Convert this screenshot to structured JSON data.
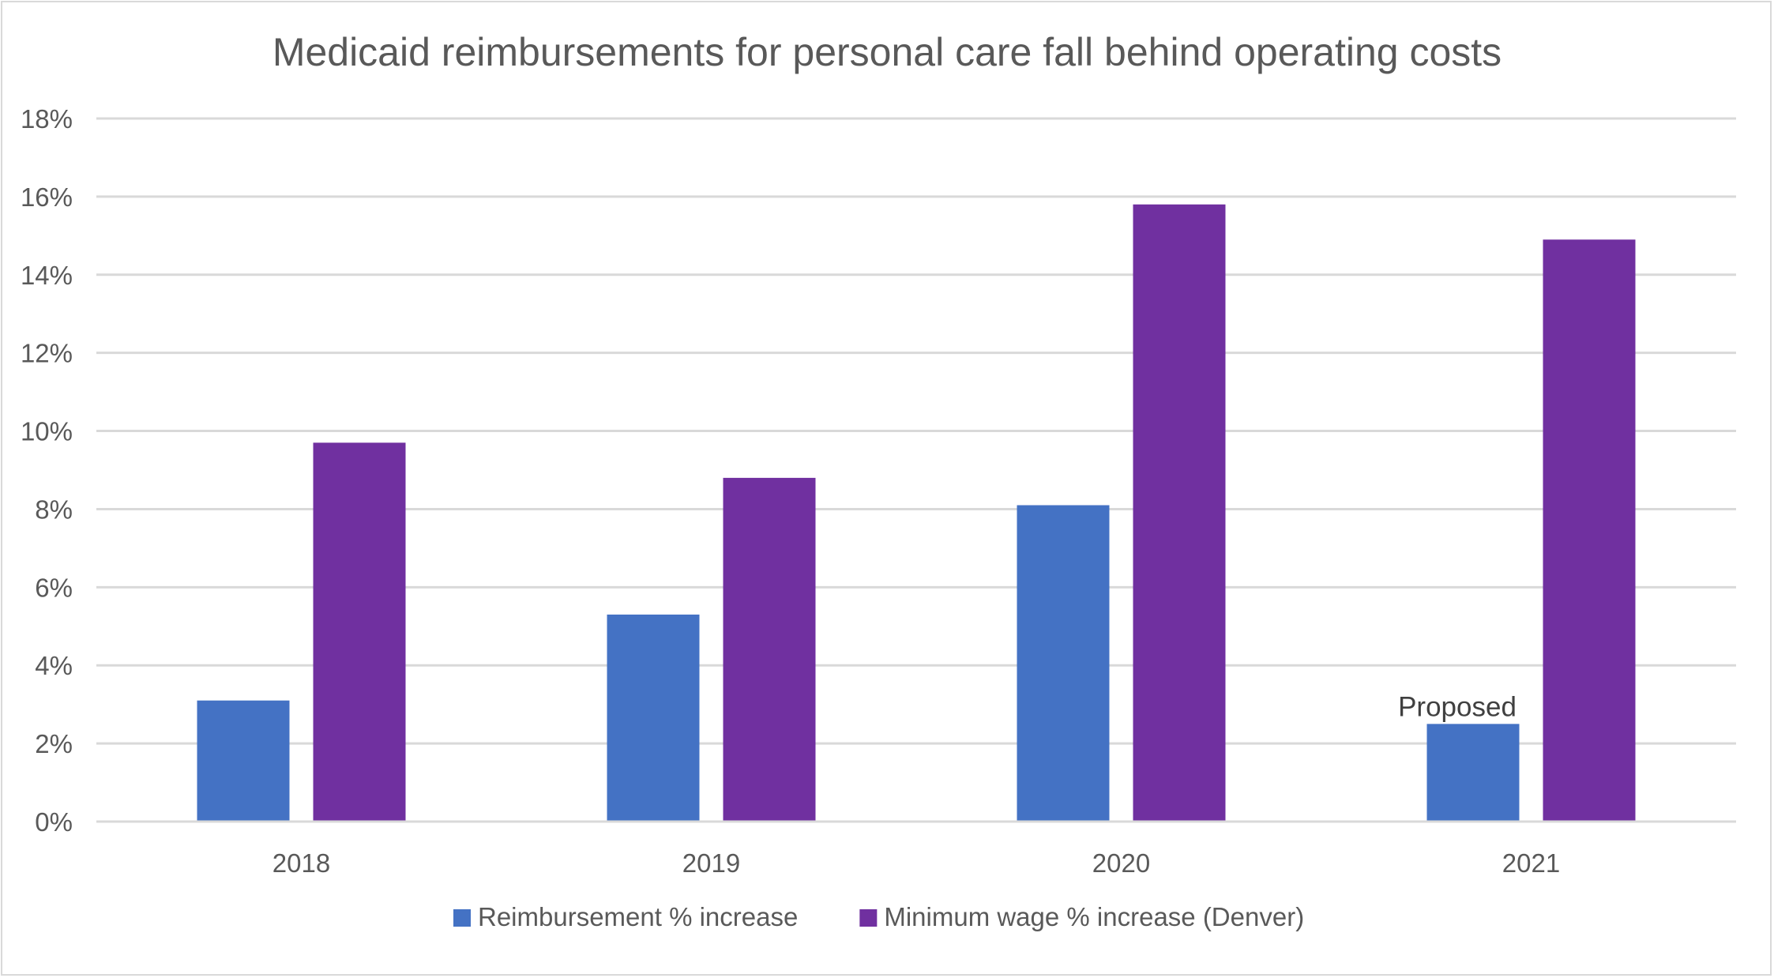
{
  "chart_data": {
    "type": "bar",
    "title": "Medicaid reimbursements for personal care fall behind operating costs",
    "categories": [
      "2018",
      "2019",
      "2020",
      "2021"
    ],
    "series": [
      {
        "name": "Reimbursement % increase",
        "values": [
          3.1,
          5.3,
          8.1,
          2.5
        ],
        "color": "#4472c4"
      },
      {
        "name": "Minimum wage % increase (Denver)",
        "values": [
          9.7,
          8.8,
          15.8,
          14.9
        ],
        "color": "#7030a0"
      }
    ],
    "ylim": [
      0,
      18
    ],
    "yticks": [
      "0%",
      "2%",
      "4%",
      "6%",
      "8%",
      "10%",
      "12%",
      "14%",
      "16%",
      "18%"
    ],
    "grid": true,
    "legend_position": "bottom",
    "annotations": [
      {
        "text": "Proposed",
        "category": "2021",
        "series": "Reimbursement % increase"
      }
    ]
  }
}
